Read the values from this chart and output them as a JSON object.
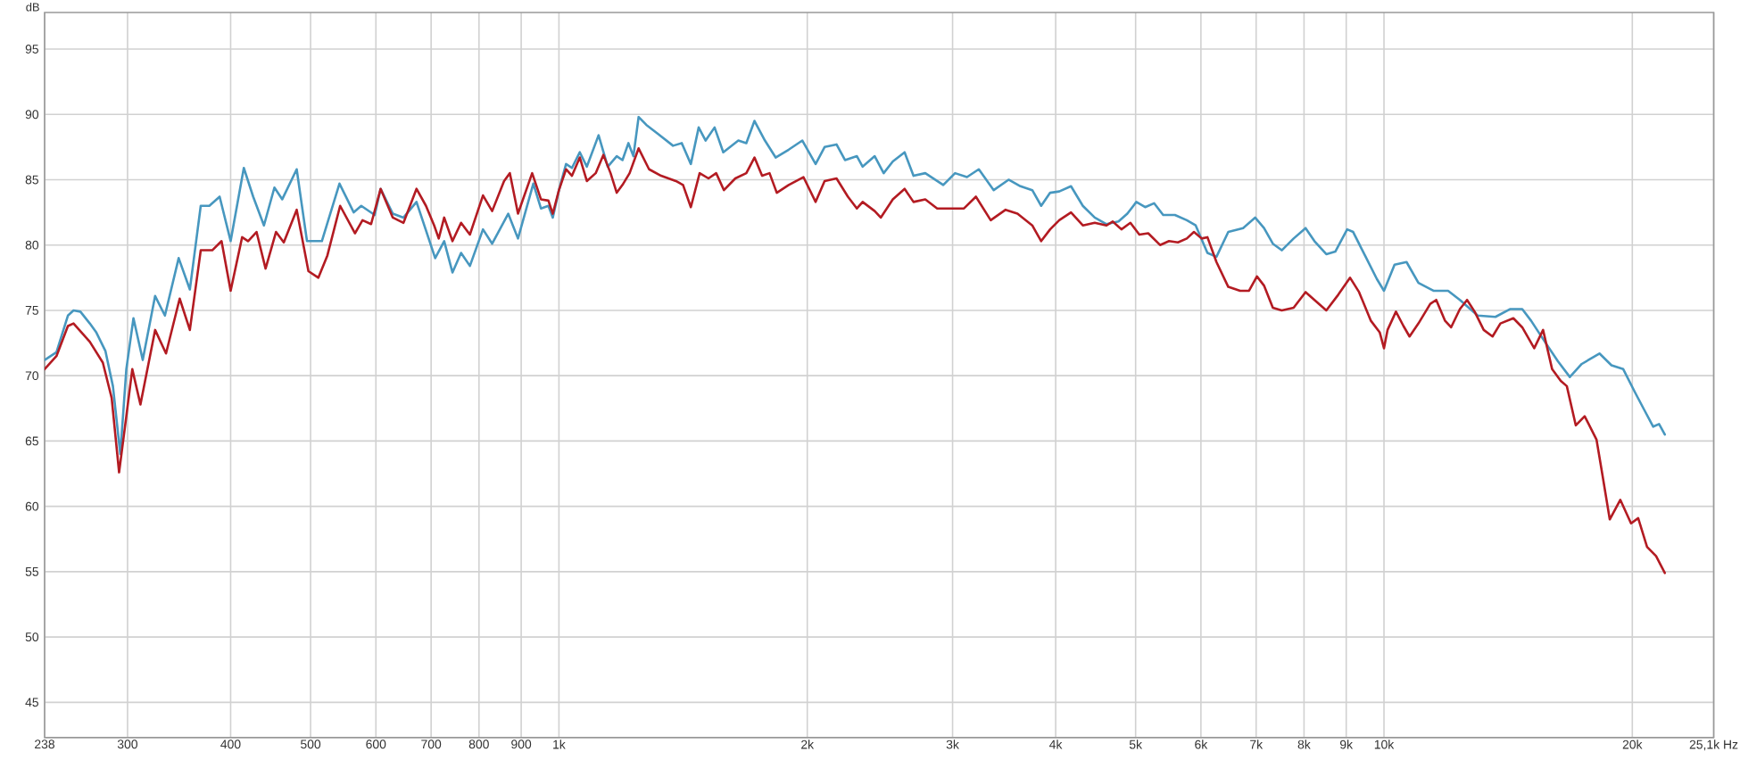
{
  "chart_data": {
    "type": "line",
    "ylabel": "dB",
    "log": "x",
    "grid": true,
    "line_style": "solid",
    "xlim": [
      238,
      25100
    ],
    "ylim": [
      42.3,
      97.8
    ],
    "xticks": [
      238,
      300,
      400,
      500,
      600,
      700,
      800,
      900,
      {
        "value": 1000,
        "label": "1k"
      },
      {
        "value": 2000,
        "label": "2k"
      },
      {
        "value": 3000,
        "label": "3k"
      },
      {
        "value": 4000,
        "label": "4k"
      },
      {
        "value": 5000,
        "label": "5k"
      },
      {
        "value": 6000,
        "label": "6k"
      },
      {
        "value": 7000,
        "label": "7k"
      },
      {
        "value": 8000,
        "label": "8k"
      },
      {
        "value": 9000,
        "label": "9k"
      },
      {
        "value": 10000,
        "label": "10k"
      },
      {
        "value": 20000,
        "label": "20k"
      },
      {
        "value": 25100,
        "label": "25,1k Hz"
      }
    ],
    "yticks": [
      45,
      50,
      55,
      60,
      65,
      70,
      75,
      80,
      85,
      90,
      95
    ],
    "series": [
      {
        "color": "#4797bf",
        "x": [
          238,
          246,
          254,
          258,
          263,
          270,
          275,
          282,
          288,
          294,
          299,
          305,
          313,
          324,
          333,
          346,
          357,
          368,
          377,
          388,
          400,
          415,
          426,
          439,
          452,
          462,
          481,
          495,
          516,
          542,
          564,
          576,
          598,
          608,
          629,
          648,
          672,
          708,
          726,
          743,
          761,
          780,
          809,
          830,
          868,
          892,
          931,
          951,
          971,
          983,
          1000,
          1020,
          1037,
          1060,
          1081,
          1117,
          1146,
          1175,
          1194,
          1214,
          1231,
          1249,
          1276,
          1319,
          1375,
          1409,
          1445,
          1477,
          1506,
          1544,
          1582,
          1650,
          1687,
          1726,
          1777,
          1831,
          1899,
          1973,
          2047,
          2099,
          2170,
          2222,
          2297,
          2334,
          2414,
          2475,
          2539,
          2624,
          2690,
          2780,
          2923,
          3021,
          3123,
          3228,
          3365,
          3508,
          3626,
          3748,
          3842,
          3939,
          4040,
          4175,
          4315,
          4461,
          4610,
          4767,
          4886,
          5010,
          5135,
          5264,
          5400,
          5580,
          5768,
          5913,
          6110,
          6266,
          6476,
          6750,
          6980,
          7155,
          7334,
          7519,
          7772,
          8035,
          8236,
          8514,
          8730,
          9024,
          9176,
          9484,
          9803,
          10000,
          10300,
          10650,
          11010,
          11480,
          11960,
          12360,
          12990,
          13650,
          14230,
          14710,
          15080,
          15590,
          16250,
          16800,
          17370,
          18250,
          18870,
          19500,
          20160,
          20670,
          21200,
          21550,
          21900
        ],
        "values": [
          71.2,
          71.8,
          74.6,
          75.0,
          74.9,
          74.0,
          73.3,
          71.9,
          69.2,
          64.0,
          70.5,
          74.4,
          71.2,
          76.1,
          74.6,
          79.0,
          76.6,
          83.0,
          83.0,
          83.7,
          80.3,
          85.9,
          83.7,
          81.5,
          84.4,
          83.5,
          85.8,
          80.3,
          80.3,
          84.7,
          82.5,
          83.0,
          82.3,
          84.3,
          82.4,
          82.1,
          83.3,
          79.0,
          80.3,
          77.9,
          79.4,
          78.4,
          81.2,
          80.1,
          82.4,
          80.5,
          84.7,
          82.8,
          83.0,
          82.1,
          84.2,
          86.2,
          85.9,
          87.1,
          86.0,
          88.4,
          86.0,
          86.8,
          86.5,
          87.8,
          86.8,
          89.8,
          89.2,
          88.5,
          87.6,
          87.8,
          86.2,
          89.0,
          88.0,
          89.0,
          87.1,
          88.0,
          87.8,
          89.5,
          88.0,
          86.7,
          87.3,
          88.0,
          86.2,
          87.5,
          87.7,
          86.5,
          86.8,
          86.0,
          86.8,
          85.5,
          86.4,
          87.1,
          85.3,
          85.5,
          84.6,
          85.5,
          85.2,
          85.8,
          84.2,
          85.0,
          84.5,
          84.2,
          83.0,
          84.0,
          84.1,
          84.5,
          83.0,
          82.1,
          81.6,
          81.8,
          82.4,
          83.3,
          82.9,
          83.2,
          82.3,
          82.3,
          81.9,
          81.5,
          79.4,
          79.1,
          81.0,
          81.3,
          82.1,
          81.3,
          80.1,
          79.6,
          80.5,
          81.3,
          80.3,
          79.3,
          79.5,
          81.2,
          81.0,
          79.2,
          77.4,
          76.5,
          78.5,
          78.7,
          77.1,
          76.5,
          76.5,
          75.8,
          74.6,
          74.5,
          75.1,
          75.1,
          74.2,
          72.8,
          71.1,
          69.9,
          70.9,
          71.7,
          70.8,
          70.5,
          68.7,
          67.4,
          66.1,
          66.3,
          65.5
        ]
      },
      {
        "color": "#b31b22",
        "x": [
          238,
          246,
          254,
          258,
          270,
          280,
          287,
          293,
          299,
          304,
          311,
          324,
          334,
          347,
          357,
          368,
          380,
          390,
          400,
          413,
          420,
          430,
          441,
          454,
          464,
          481,
          497,
          511,
          524,
          543,
          566,
          578,
          592,
          608,
          629,
          648,
          672,
          690,
          706,
          715,
          726,
          743,
          761,
          780,
          809,
          830,
          858,
          872,
          892,
          928,
          951,
          971,
          983,
          1000,
          1020,
          1037,
          1060,
          1081,
          1108,
          1132,
          1155,
          1175,
          1194,
          1218,
          1249,
          1286,
          1330,
          1386,
          1414,
          1445,
          1481,
          1518,
          1551,
          1585,
          1636,
          1687,
          1726,
          1763,
          1800,
          1837,
          1899,
          1979,
          2047,
          2099,
          2170,
          2240,
          2297,
          2334,
          2414,
          2455,
          2539,
          2624,
          2690,
          2780,
          2874,
          2972,
          3097,
          3202,
          3337,
          3479,
          3596,
          3748,
          3842,
          3939,
          4040,
          4175,
          4315,
          4461,
          4610,
          4690,
          4806,
          4928,
          5052,
          5179,
          5353,
          5489,
          5627,
          5768,
          5884,
          6012,
          6110,
          6266,
          6476,
          6693,
          6862,
          7015,
          7155,
          7334,
          7519,
          7772,
          8035,
          8236,
          8514,
          8803,
          9098,
          9328,
          9642,
          9885,
          10000,
          10100,
          10340,
          10560,
          10740,
          11010,
          11380,
          11570,
          11860,
          12060,
          12360,
          12610,
          12880,
          13210,
          13540,
          13840,
          14350,
          14710,
          15210,
          15590,
          15990,
          16380,
          16660,
          17080,
          17510,
          18100,
          18400,
          18780,
          19340,
          19930,
          20330,
          20840,
          21370,
          21900
        ],
        "values": [
          70.5,
          71.5,
          73.8,
          74.0,
          72.6,
          71.0,
          68.3,
          62.6,
          66.9,
          70.5,
          67.8,
          73.5,
          71.7,
          75.9,
          73.5,
          79.6,
          79.6,
          80.3,
          76.5,
          80.6,
          80.3,
          81.0,
          78.2,
          81.0,
          80.2,
          82.7,
          78.0,
          77.5,
          79.2,
          83.0,
          80.9,
          81.9,
          81.6,
          84.3,
          82.1,
          81.7,
          84.3,
          83.0,
          81.5,
          80.5,
          82.1,
          80.3,
          81.7,
          80.8,
          83.8,
          82.6,
          84.9,
          85.5,
          82.4,
          85.5,
          83.5,
          83.4,
          82.4,
          84.2,
          85.8,
          85.3,
          86.7,
          84.9,
          85.5,
          86.9,
          85.5,
          84.0,
          84.6,
          85.5,
          87.4,
          85.8,
          85.3,
          84.9,
          84.6,
          82.9,
          85.5,
          85.1,
          85.5,
          84.2,
          85.1,
          85.5,
          86.7,
          85.3,
          85.5,
          84.0,
          84.6,
          85.2,
          83.3,
          84.9,
          85.1,
          83.7,
          82.8,
          83.3,
          82.6,
          82.1,
          83.5,
          84.3,
          83.3,
          83.5,
          82.8,
          82.8,
          82.8,
          83.7,
          81.9,
          82.7,
          82.4,
          81.5,
          80.3,
          81.2,
          81.9,
          82.5,
          81.5,
          81.7,
          81.5,
          81.8,
          81.2,
          81.7,
          80.8,
          80.9,
          80.0,
          80.3,
          80.2,
          80.5,
          81.0,
          80.5,
          80.6,
          78.7,
          76.8,
          76.5,
          76.5,
          77.6,
          76.9,
          75.2,
          75.0,
          75.2,
          76.4,
          75.8,
          75.0,
          76.2,
          77.5,
          76.4,
          74.2,
          73.3,
          72.1,
          73.5,
          74.9,
          73.8,
          73.0,
          74.0,
          75.5,
          75.8,
          74.2,
          73.7,
          75.1,
          75.8,
          74.9,
          73.5,
          73.0,
          74.0,
          74.4,
          73.7,
          72.1,
          73.5,
          70.5,
          69.6,
          69.2,
          66.2,
          66.9,
          65.1,
          62.4,
          59.0,
          60.5,
          58.7,
          59.1,
          56.9,
          56.2,
          54.9
        ]
      }
    ]
  }
}
